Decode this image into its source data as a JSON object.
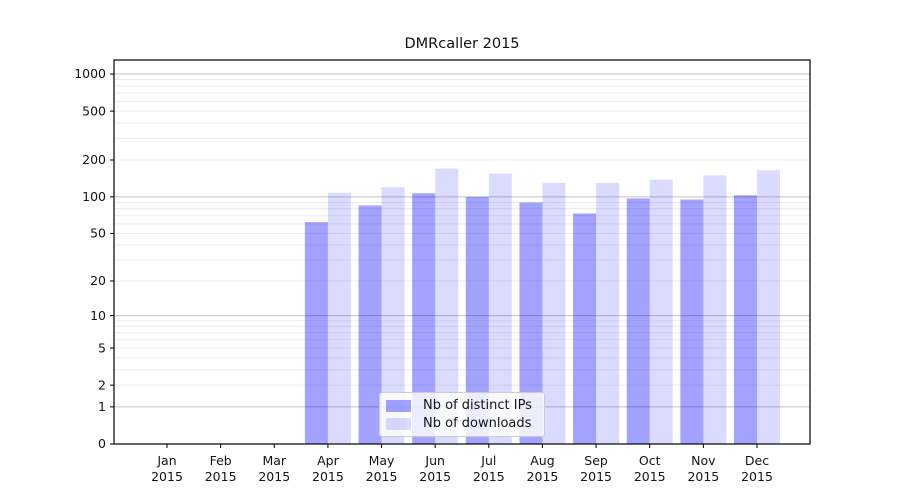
{
  "chart_data": {
    "type": "bar",
    "title": "DMRcaller 2015",
    "months": [
      "Jan",
      "Feb",
      "Mar",
      "Apr",
      "May",
      "Jun",
      "Jul",
      "Aug",
      "Sep",
      "Oct",
      "Nov",
      "Dec"
    ],
    "xtick_year": "2015",
    "series": [
      {
        "name": "Nb of distinct IPs",
        "color": "rgba(0,0,255,0.36)",
        "color_hex": "#a4a4f8",
        "values": [
          0,
          0,
          0,
          62,
          85,
          107,
          100,
          90,
          73,
          97,
          95,
          103
        ]
      },
      {
        "name": "Nb of downloads",
        "color": "rgba(0,0,255,0.14)",
        "color_hex": "#dcdcfb",
        "values": [
          0,
          0,
          0,
          108,
          120,
          170,
          155,
          130,
          130,
          138,
          150,
          165
        ]
      }
    ],
    "yscale": "log1p",
    "ylim": [
      0,
      1300
    ],
    "yticks": {
      "values": [
        0,
        1,
        2,
        5,
        10,
        20,
        50,
        100,
        200,
        500,
        1000
      ],
      "labels": [
        "0",
        "1",
        "2",
        "5",
        "10",
        "20",
        "50",
        "100",
        "200",
        "500",
        "1000"
      ]
    },
    "grid": {
      "on": true,
      "major_lines": [
        1,
        10,
        100,
        1000
      ],
      "major_line_color": "#c3c3c3",
      "minor_line_color": "#ececec"
    },
    "legend": {
      "position": "lower center"
    }
  }
}
